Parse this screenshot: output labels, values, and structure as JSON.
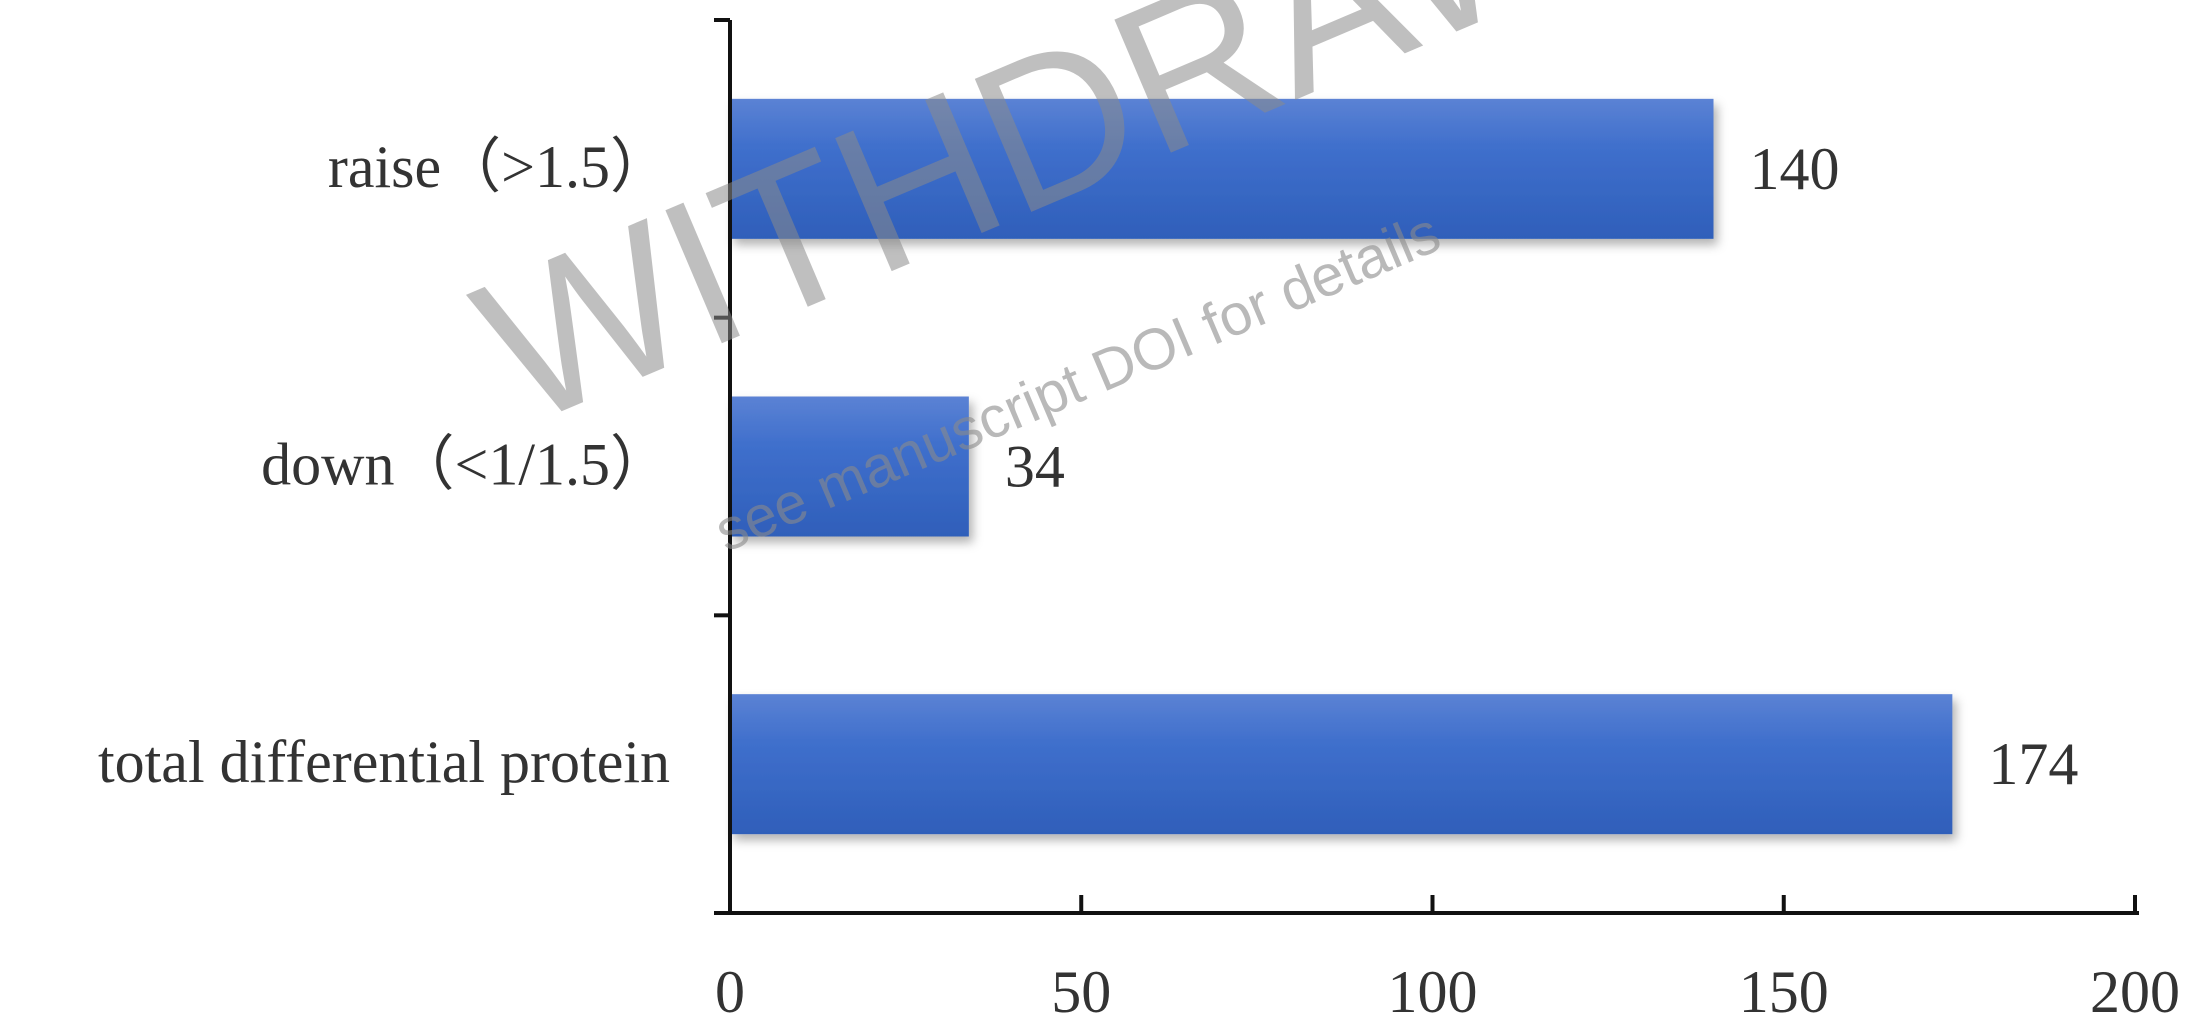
{
  "chart_data": {
    "type": "bar",
    "orientation": "horizontal",
    "categories": [
      "raise（>1.5）",
      "down（<1/1.5）",
      "total differential protein"
    ],
    "values": [
      140,
      34,
      174
    ],
    "data_labels": [
      "140",
      "34",
      "174"
    ],
    "xlim": [
      0,
      200
    ],
    "x_ticks": [
      0,
      50,
      100,
      150,
      200
    ],
    "x_tick_labels": [
      "0",
      "50",
      "100",
      "150",
      "200"
    ],
    "title": "",
    "xlabel": "",
    "ylabel": "",
    "grid": false,
    "legend": "none",
    "bar_color": "#3a6cc9"
  },
  "watermark": {
    "main_text": "WITHDRAWN",
    "sub_text": "see manuscript DOI for details"
  }
}
